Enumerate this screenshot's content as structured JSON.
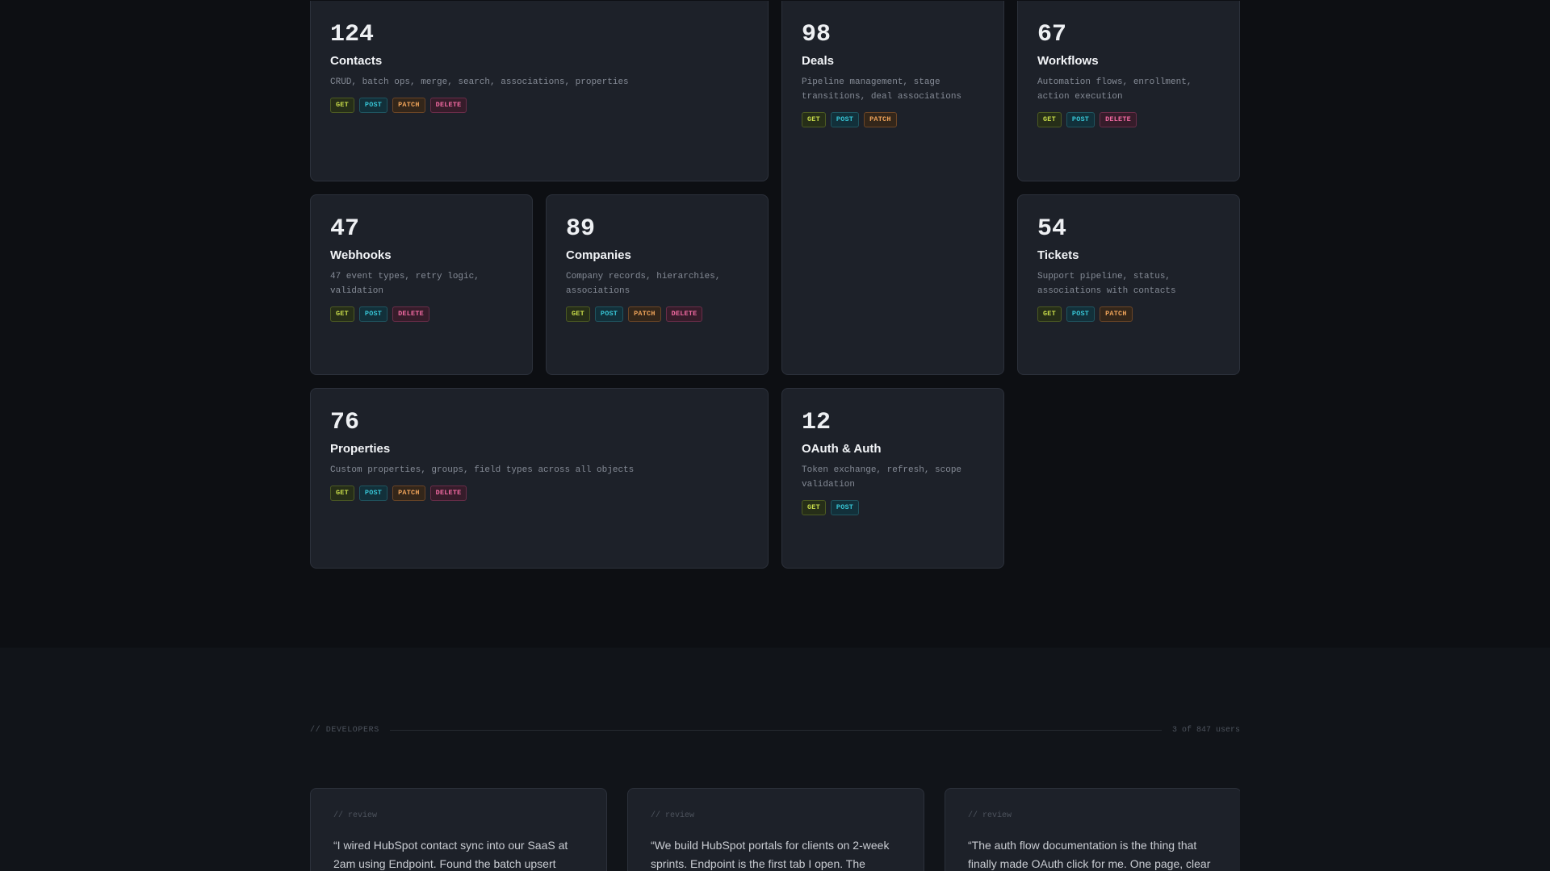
{
  "cards": [
    {
      "count": "124",
      "title": "Contacts",
      "desc": "CRUD, batch ops, merge, search, associations, properties",
      "methods": [
        "GET",
        "POST",
        "PATCH",
        "DELETE"
      ]
    },
    {
      "count": "98",
      "title": "Deals",
      "desc": "Pipeline management, stage transitions, deal associations",
      "methods": [
        "GET",
        "POST",
        "PATCH"
      ]
    },
    {
      "count": "67",
      "title": "Workflows",
      "desc": "Automation flows, enrollment, action execution",
      "methods": [
        "GET",
        "POST",
        "DELETE"
      ]
    },
    {
      "count": "47",
      "title": "Webhooks",
      "desc": "47 event types, retry logic, validation",
      "methods": [
        "GET",
        "POST",
        "DELETE"
      ]
    },
    {
      "count": "89",
      "title": "Companies",
      "desc": "Company records, hierarchies, associations",
      "methods": [
        "GET",
        "POST",
        "PATCH",
        "DELETE"
      ]
    },
    {
      "count": "54",
      "title": "Tickets",
      "desc": "Support pipeline, status, associations with contacts",
      "methods": [
        "GET",
        "POST",
        "PATCH"
      ]
    },
    {
      "count": "76",
      "title": "Properties",
      "desc": "Custom properties, groups, field types across all objects",
      "methods": [
        "GET",
        "POST",
        "PATCH",
        "DELETE"
      ]
    },
    {
      "count": "12",
      "title": "OAuth & Auth",
      "desc": "Token exchange, refresh, scope validation",
      "methods": [
        "GET",
        "POST"
      ]
    }
  ],
  "developers": {
    "label": "// DEVELOPERS",
    "count": "3 of 847 users"
  },
  "reviews": [
    {
      "tag": "// review",
      "quote": "“I wired HubSpot contact sync into our SaaS at 2am using Endpoint. Found the batch upsert"
    },
    {
      "tag": "// review",
      "quote": "“We build HubSpot portals for clients on 2-week sprints. Endpoint is the first tab I open. The"
    },
    {
      "tag": "// review",
      "quote": "“The auth flow documentation is the thing that finally made OAuth click for me. One page, clear"
    }
  ],
  "colors": {
    "background": "#0d0f13",
    "card": "#1d2129",
    "get": "#c8dc4a",
    "post": "#37c4d4",
    "patch": "#f0a45a",
    "delete": "#f26aa2"
  }
}
